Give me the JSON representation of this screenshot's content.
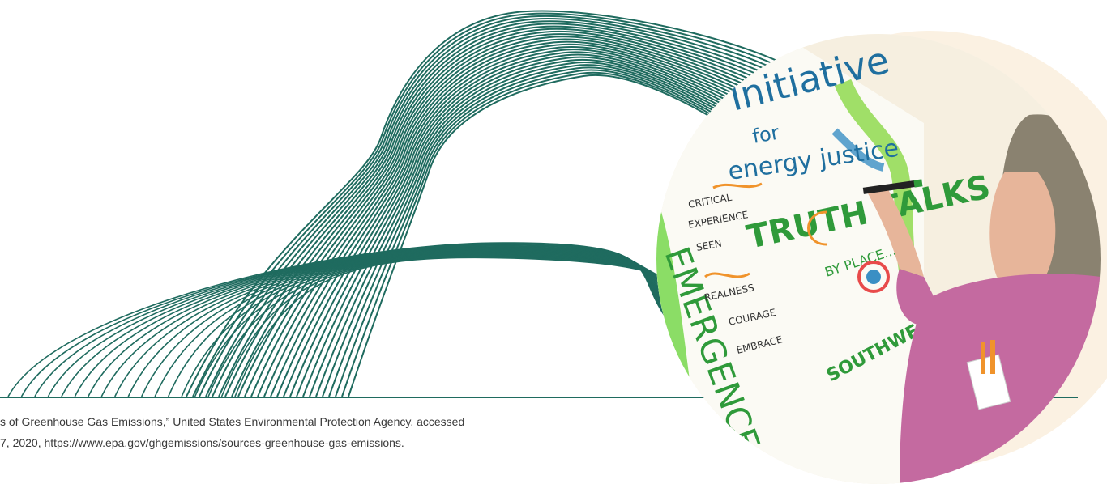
{
  "footnote": {
    "line1": "s of Greenhouse Gas Emissions,” United States Environmental Protection Agency, accessed",
    "line2": "7, 2020, https://www.epa.gov/ghgemissions/sources-greenhouse-gas-emissions."
  },
  "mural": {
    "title_initiative": "Initiative",
    "title_for": "for",
    "title_justice": "energy justice",
    "truth_talks": "TRUTH TALKS",
    "by_place": "BY PLACE...",
    "southwest": "SOUTHWEST & SOUTH",
    "emergence": "EMERGENCE",
    "notes": [
      "CRITICAL",
      "EXPERIENCE",
      "SEEN",
      "REALNESS",
      "COURAGE",
      "EMBRACE"
    ]
  },
  "colors": {
    "wave": "#1f6b5f",
    "beige": "#fbf1e2",
    "mural_green": "#2f9a3a",
    "mural_blue": "#1f6f9f",
    "shirt": "#c46aa0"
  }
}
